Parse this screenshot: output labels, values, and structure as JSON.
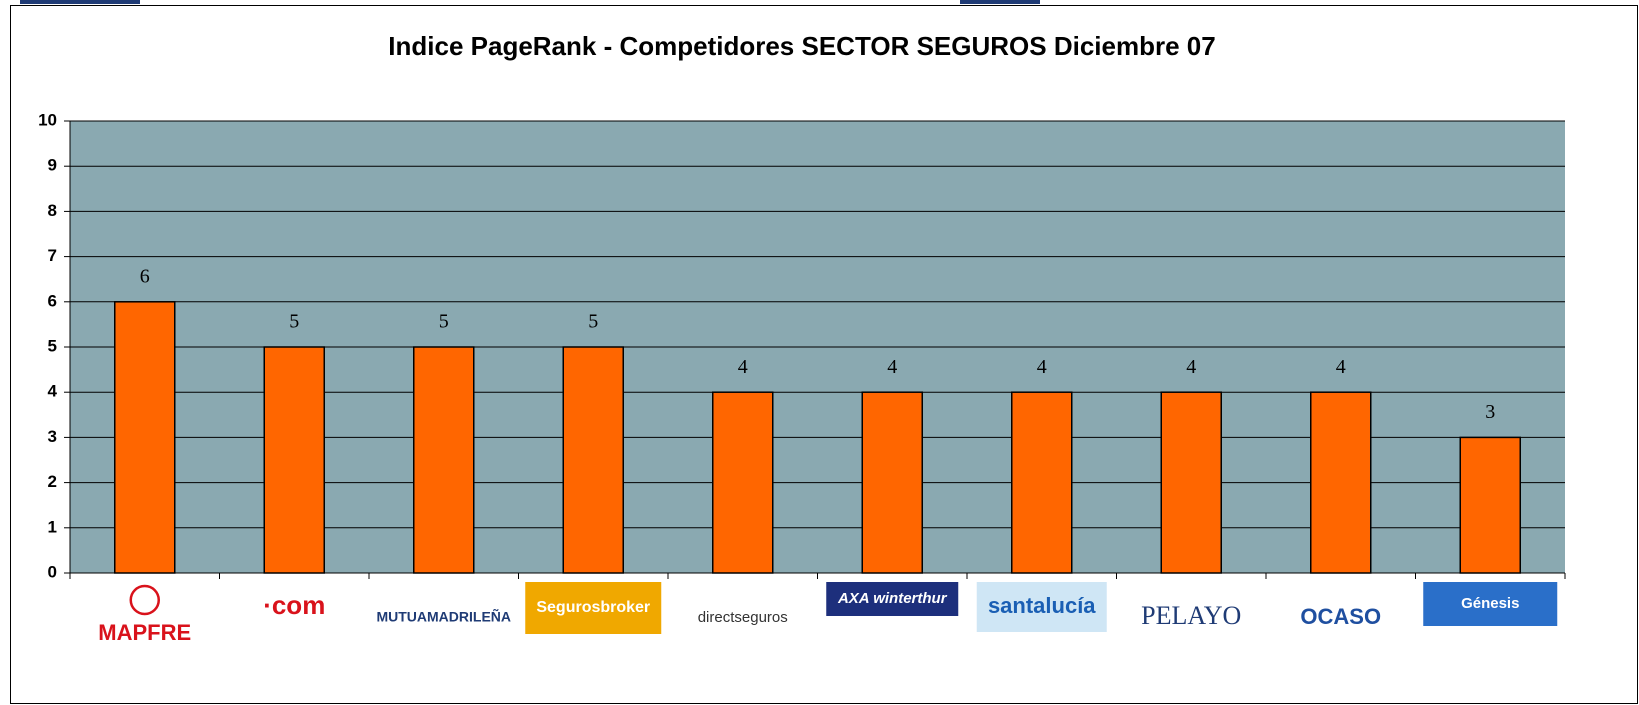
{
  "chart_data": {
    "type": "bar",
    "title": "Indice PageRank - Competidores SECTOR SEGUROS Diciembre 07",
    "categories": [
      "MAPFRE",
      "·com",
      "MUTUAMADRILEÑA",
      "Segurosbroker",
      "directseguros",
      "AXA winterthur",
      "santalucía",
      "PELAYO",
      "OCASO",
      "Génesis"
    ],
    "values": [
      6,
      5,
      5,
      5,
      4,
      4,
      4,
      4,
      4,
      3
    ],
    "color": "#ff6600",
    "ylim": [
      0,
      10
    ],
    "yticks": [
      0,
      1,
      2,
      3,
      4,
      5,
      6,
      7,
      8,
      9,
      10
    ],
    "grid": true
  }
}
